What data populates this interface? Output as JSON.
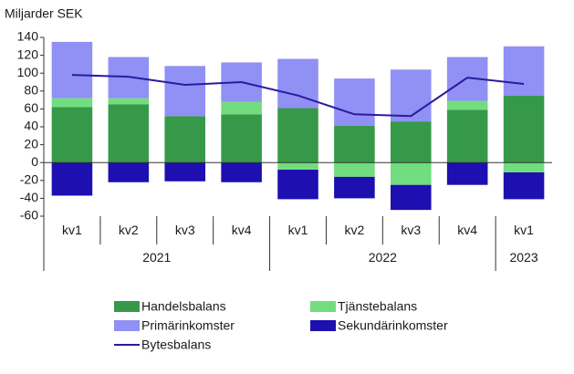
{
  "chart_data": {
    "type": "bar",
    "stacked": true,
    "title": "Miljarder SEK",
    "groups": [
      {
        "label": "2021",
        "categories": [
          "kv1",
          "kv2",
          "kv3",
          "kv4"
        ]
      },
      {
        "label": "2022",
        "categories": [
          "kv1",
          "kv2",
          "kv3",
          "kv4"
        ]
      },
      {
        "label": "2023",
        "categories": [
          "kv1"
        ]
      }
    ],
    "series": [
      {
        "name": "Handelsbalans",
        "color": "#36994a",
        "values": [
          62,
          65,
          52,
          54,
          61,
          41,
          46,
          59,
          75
        ]
      },
      {
        "name": "Tjänstebalans",
        "color": "#72dd7e",
        "values": [
          10,
          7,
          0,
          14,
          -8,
          -16,
          -25,
          10,
          -11
        ]
      },
      {
        "name": "Primärinkomster",
        "color": "#9090f5",
        "values": [
          63,
          46,
          56,
          44,
          55,
          53,
          58,
          49,
          55
        ]
      },
      {
        "name": "Sekundärinkomster",
        "color": "#1e0fb0",
        "values": [
          -37,
          -22,
          -21,
          -22,
          -33,
          -24,
          -28,
          -25,
          -30
        ]
      },
      {
        "name": "Bytesbalans",
        "color": "#2b1aa0",
        "type": "line",
        "values": [
          98,
          96,
          87,
          90,
          75,
          54,
          52,
          95,
          88
        ]
      }
    ],
    "ylim": [
      -60,
      140
    ],
    "yticks": [
      -60,
      -40,
      -20,
      0,
      20,
      40,
      60,
      80,
      100,
      120,
      140
    ]
  }
}
